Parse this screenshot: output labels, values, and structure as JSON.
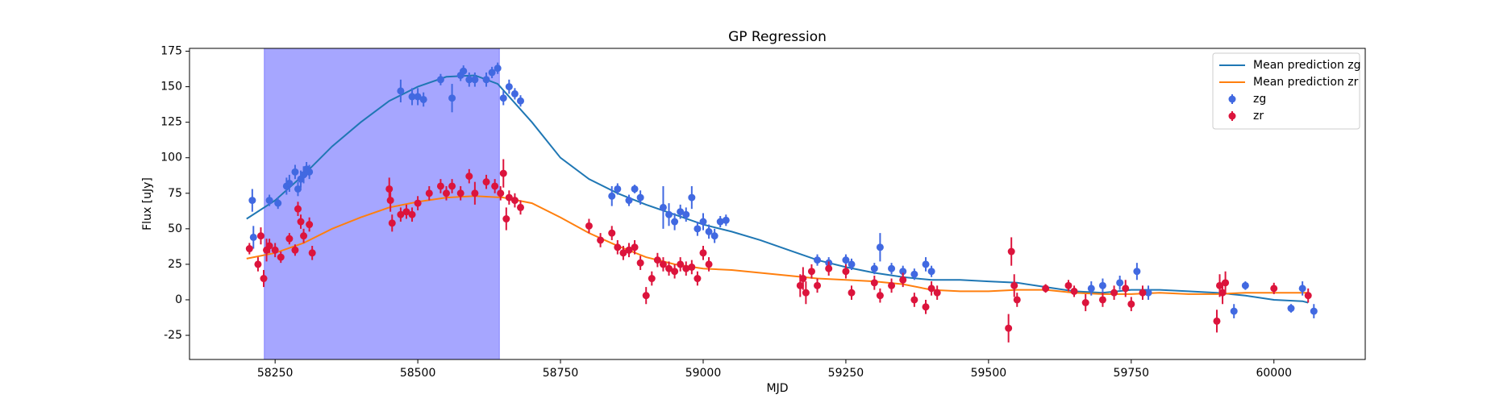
{
  "chart_data": {
    "type": "scatter",
    "title": "GP Regression",
    "x_label": "MJD",
    "y_label": "Flux [uJy]",
    "xlim": [
      58100,
      60160
    ],
    "ylim": [
      -42,
      177
    ],
    "xticks": [
      58250,
      58500,
      58750,
      59000,
      59250,
      59500,
      59750,
      60000
    ],
    "yticks": [
      -25,
      0,
      25,
      50,
      75,
      100,
      125,
      150,
      175
    ],
    "span": {
      "x": [
        58231,
        58643
      ],
      "color": "#0000ff",
      "opacity": 0.35
    },
    "legend": "upper right",
    "series": [
      {
        "name": "Mean prediction zg",
        "type": "line",
        "color": "#1f77b4",
        "x": [
          58200,
          58250,
          58300,
          58350,
          58400,
          58450,
          58500,
          58550,
          58600,
          58640,
          58700,
          58750,
          58800,
          58850,
          58900,
          58950,
          59000,
          59050,
          59100,
          59150,
          59200,
          59250,
          59300,
          59350,
          59400,
          59450,
          59500,
          59550,
          59600,
          59650,
          59700,
          59750,
          59800,
          59850,
          59900,
          59950,
          60000,
          60050,
          60060
        ],
        "values": [
          57,
          70,
          88,
          108,
          125,
          140,
          150,
          157,
          158,
          152,
          125,
          100,
          85,
          75,
          67,
          60,
          53,
          48,
          42,
          35,
          28,
          23,
          19,
          16,
          14,
          14,
          13,
          12,
          9,
          6,
          5,
          7,
          7,
          6,
          5,
          3,
          0,
          -1,
          -2
        ]
      },
      {
        "name": "Mean prediction zr",
        "type": "line",
        "color": "#ff7f0e",
        "x": [
          58200,
          58250,
          58300,
          58350,
          58400,
          58450,
          58500,
          58550,
          58600,
          58650,
          58700,
          58750,
          58800,
          58850,
          58900,
          58950,
          59000,
          59050,
          59100,
          59150,
          59200,
          59250,
          59300,
          59350,
          59400,
          59450,
          59500,
          59550,
          59600,
          59650,
          59700,
          59750,
          59800,
          59850,
          59900,
          59950,
          60000,
          60060
        ],
        "values": [
          29,
          33,
          40,
          50,
          58,
          65,
          69,
          72,
          73,
          72,
          68,
          58,
          47,
          38,
          30,
          25,
          22,
          21,
          19,
          17,
          15,
          14,
          13,
          11,
          7,
          6,
          6,
          7,
          7,
          5,
          4,
          4,
          5,
          4,
          4,
          5,
          5,
          5
        ]
      },
      {
        "name": "zg",
        "type": "errorbar",
        "color": "#4169e1",
        "x": [
          58210,
          58212,
          58240,
          58255,
          58270,
          58275,
          58285,
          58290,
          58295,
          58300,
          58305,
          58310,
          58470,
          58490,
          58500,
          58510,
          58540,
          58560,
          58575,
          58580,
          58590,
          58600,
          58620,
          58630,
          58640,
          58650,
          58660,
          58670,
          58680,
          58840,
          58850,
          58870,
          58880,
          58890,
          58930,
          58940,
          58950,
          58960,
          58970,
          58980,
          58990,
          59000,
          59010,
          59020,
          59030,
          59040,
          59200,
          59220,
          59250,
          59260,
          59300,
          59310,
          59330,
          59350,
          59370,
          59390,
          59400,
          59680,
          59700,
          59730,
          59760,
          59780,
          59930,
          59950,
          60030,
          60050,
          60070
        ],
        "values": [
          70,
          44,
          70,
          68,
          80,
          82,
          90,
          78,
          85,
          88,
          92,
          90,
          147,
          143,
          143,
          141,
          155,
          142,
          158,
          161,
          155,
          155,
          155,
          160,
          163,
          142,
          150,
          145,
          140,
          73,
          78,
          70,
          78,
          72,
          65,
          60,
          55,
          62,
          60,
          72,
          50,
          55,
          48,
          45,
          55,
          56,
          28,
          26,
          28,
          25,
          22,
          37,
          22,
          20,
          18,
          25,
          20,
          8,
          10,
          12,
          20,
          5,
          -8,
          10,
          -6,
          8,
          -8
        ],
        "errors": [
          8,
          8,
          4,
          4,
          6,
          6,
          5,
          5,
          6,
          6,
          5,
          5,
          8,
          6,
          6,
          5,
          4,
          10,
          4,
          4,
          5,
          5,
          5,
          4,
          4,
          5,
          5,
          4,
          4,
          7,
          4,
          4,
          3,
          5,
          15,
          8,
          6,
          5,
          5,
          8,
          5,
          6,
          5,
          5,
          4,
          4,
          4,
          4,
          4,
          4,
          4,
          10,
          4,
          4,
          4,
          5,
          4,
          5,
          5,
          5,
          6,
          5,
          5,
          3,
          3,
          5,
          5
        ]
      },
      {
        "name": "zr",
        "type": "errorbar",
        "color": "#dc143c",
        "x": [
          58205,
          58220,
          58225,
          58230,
          58235,
          58240,
          58250,
          58260,
          58275,
          58285,
          58290,
          58295,
          58300,
          58310,
          58315,
          58450,
          58452,
          58455,
          58470,
          58480,
          58490,
          58500,
          58520,
          58540,
          58550,
          58560,
          58575,
          58590,
          58600,
          58620,
          58635,
          58645,
          58650,
          58655,
          58660,
          58670,
          58680,
          58800,
          58820,
          58840,
          58850,
          58860,
          58870,
          58880,
          58890,
          58900,
          58910,
          58920,
          58930,
          58940,
          58950,
          58960,
          58970,
          58980,
          58990,
          59000,
          59010,
          59170,
          59175,
          59180,
          59190,
          59200,
          59220,
          59250,
          59260,
          59300,
          59310,
          59330,
          59350,
          59370,
          59390,
          59400,
          59410,
          59535,
          59540,
          59545,
          59550,
          59600,
          59640,
          59650,
          59670,
          59700,
          59720,
          59740,
          59750,
          59770,
          59900,
          59905,
          59910,
          59915,
          60000,
          60060
        ],
        "values": [
          36,
          25,
          45,
          15,
          35,
          38,
          35,
          30,
          43,
          35,
          64,
          55,
          45,
          53,
          33,
          78,
          70,
          54,
          60,
          62,
          60,
          68,
          75,
          80,
          75,
          80,
          75,
          87,
          75,
          83,
          80,
          75,
          89,
          57,
          72,
          70,
          65,
          52,
          42,
          47,
          37,
          33,
          35,
          37,
          26,
          3,
          15,
          28,
          25,
          22,
          20,
          25,
          22,
          23,
          15,
          33,
          25,
          10,
          15,
          5,
          20,
          10,
          22,
          20,
          5,
          12,
          3,
          10,
          14,
          0,
          -5,
          8,
          5,
          -20,
          34,
          10,
          0,
          8,
          10,
          6,
          -2,
          0,
          5,
          8,
          -3,
          5,
          -15,
          10,
          5,
          12,
          8,
          3
        ],
        "errors": [
          4,
          5,
          6,
          6,
          8,
          5,
          5,
          4,
          4,
          4,
          5,
          5,
          5,
          5,
          5,
          8,
          8,
          6,
          5,
          5,
          5,
          5,
          5,
          5,
          5,
          5,
          5,
          5,
          8,
          5,
          5,
          5,
          10,
          8,
          5,
          5,
          5,
          5,
          5,
          5,
          5,
          5,
          5,
          5,
          5,
          6,
          5,
          5,
          5,
          5,
          5,
          5,
          5,
          5,
          5,
          5,
          5,
          8,
          8,
          8,
          5,
          5,
          5,
          5,
          5,
          5,
          5,
          5,
          5,
          5,
          5,
          5,
          5,
          10,
          10,
          8,
          5,
          3,
          4,
          4,
          6,
          5,
          5,
          6,
          5,
          5,
          8,
          8,
          8,
          8,
          4,
          5
        ]
      }
    ]
  }
}
